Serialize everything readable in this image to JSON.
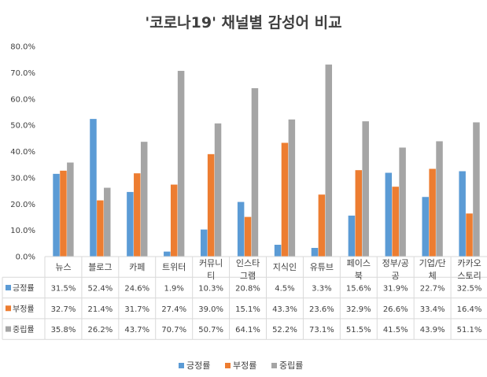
{
  "chart_data": {
    "type": "bar",
    "title": "'코로나19' 채널별 감성어 비교",
    "categories": [
      [
        "뉴스"
      ],
      [
        "블로그"
      ],
      [
        "카페"
      ],
      [
        "트위터"
      ],
      [
        "커뮤니",
        "티"
      ],
      [
        "인스타",
        "그램"
      ],
      [
        "지식인"
      ],
      [
        "유튜브"
      ],
      [
        "페이스",
        "북"
      ],
      [
        "정부/공",
        "공"
      ],
      [
        "기업/단",
        "체"
      ],
      [
        "카카오",
        "스토리"
      ]
    ],
    "series": [
      {
        "name": "긍정률",
        "color": "#5B9BD5",
        "values": [
          31.5,
          52.4,
          24.6,
          1.9,
          10.3,
          20.8,
          4.5,
          3.3,
          15.6,
          31.9,
          22.7,
          32.5
        ],
        "labels": [
          "31.5%",
          "52.4%",
          "24.6%",
          "1.9%",
          "10.3%",
          "20.8%",
          "4.5%",
          "3.3%",
          "15.6%",
          "31.9%",
          "22.7%",
          "32.5%"
        ]
      },
      {
        "name": "부정률",
        "color": "#ED7D31",
        "values": [
          32.7,
          21.4,
          31.7,
          27.4,
          39.0,
          15.1,
          43.3,
          23.6,
          32.9,
          26.6,
          33.4,
          16.4
        ],
        "labels": [
          "32.7%",
          "21.4%",
          "31.7%",
          "27.4%",
          "39.0%",
          "15.1%",
          "43.3%",
          "23.6%",
          "32.9%",
          "26.6%",
          "33.4%",
          "16.4%"
        ]
      },
      {
        "name": "중립률",
        "color": "#A5A5A5",
        "values": [
          35.8,
          26.2,
          43.7,
          70.7,
          50.7,
          64.1,
          52.2,
          73.1,
          51.5,
          41.5,
          43.9,
          51.1
        ],
        "labels": [
          "35.8%",
          "26.2%",
          "43.7%",
          "70.7%",
          "50.7%",
          "64.1%",
          "52.2%",
          "73.1%",
          "51.5%",
          "41.5%",
          "43.9%",
          "51.1%"
        ]
      }
    ],
    "ylim": [
      0,
      80
    ],
    "yticks": [
      "0.0%",
      "10.0%",
      "20.0%",
      "30.0%",
      "40.0%",
      "50.0%",
      "60.0%",
      "70.0%",
      "80.0%"
    ],
    "grid": false,
    "legend": "bottom",
    "data_table": true
  }
}
